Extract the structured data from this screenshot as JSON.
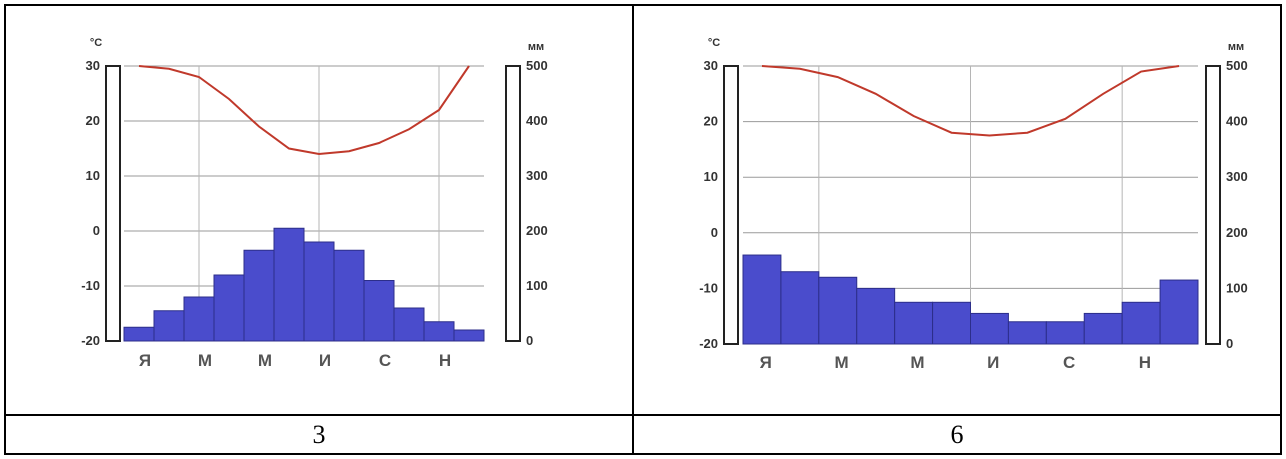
{
  "cells": [
    {
      "caption": "3"
    },
    {
      "caption": "6"
    }
  ],
  "chart_data": [
    {
      "type": "bar",
      "units_left": "°C",
      "units_right": "мм",
      "left_ticks": [
        "30",
        "20",
        "10",
        "0",
        "-10",
        "-20"
      ],
      "right_ticks": [
        "500",
        "400",
        "300",
        "200",
        "100",
        "0"
      ],
      "month_labels": [
        "Я",
        "М",
        "М",
        "И",
        "С",
        "Н"
      ],
      "temp_range": [
        -20,
        30
      ],
      "precip_range": [
        0,
        500
      ],
      "precipitation": [
        25,
        55,
        80,
        120,
        165,
        205,
        180,
        165,
        110,
        60,
        35,
        20
      ],
      "temperature": [
        30,
        29.5,
        28,
        24,
        19,
        15,
        14,
        14.5,
        16,
        18.5,
        22,
        30
      ],
      "bar_color": "#4a4ccc",
      "line_color": "#c0392b"
    },
    {
      "type": "bar",
      "units_left": "°C",
      "units_right": "мм",
      "left_ticks": [
        "30",
        "20",
        "10",
        "0",
        "-10",
        "-20"
      ],
      "right_ticks": [
        "500",
        "400",
        "300",
        "200",
        "100",
        "0"
      ],
      "month_labels": [
        "Я",
        "М",
        "М",
        "И",
        "С",
        "Н"
      ],
      "temp_range": [
        -20,
        30
      ],
      "precip_range": [
        0,
        500
      ],
      "precipitation": [
        160,
        130,
        120,
        100,
        75,
        75,
        55,
        40,
        40,
        55,
        75,
        115
      ],
      "temperature": [
        30,
        29.5,
        28,
        25,
        21,
        18,
        17.5,
        18,
        20.5,
        25,
        29,
        30
      ],
      "bar_color": "#4a4ccc",
      "line_color": "#c0392b"
    }
  ]
}
